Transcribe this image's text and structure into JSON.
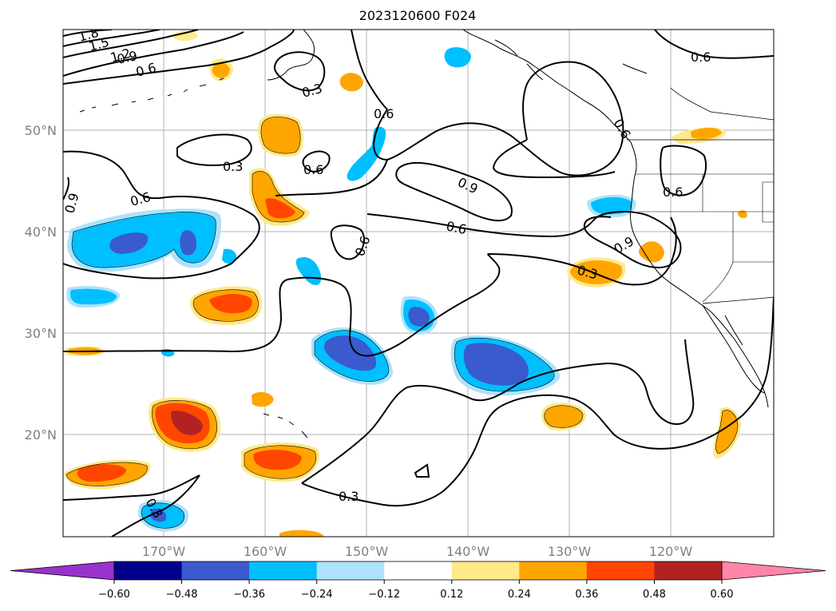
{
  "title": "2023120600 F024",
  "map": {
    "lat_labels": [
      "50°N",
      "40°N",
      "30°N",
      "20°N"
    ],
    "lon_labels": [
      "170°W",
      "160°W",
      "150°W",
      "140°W",
      "130°W",
      "120°W"
    ],
    "contour_labels": [
      "1.8",
      "1.5",
      "1.2",
      "0.9",
      "0.6",
      "0.3",
      "0.6",
      "0.6",
      "0.6",
      "0.3",
      "0.9",
      "0.6",
      "0.9",
      "0.6",
      "0.6",
      "0.6",
      "0.3",
      "0.9",
      "0.6",
      "0.3",
      "0.3",
      "0.6"
    ]
  },
  "colorbar": {
    "ticks": [
      "−0.60",
      "−0.48",
      "−0.36",
      "−0.24",
      "−0.12",
      "0.12",
      "0.24",
      "0.36",
      "0.48",
      "0.60"
    ],
    "colors": {
      "under": "#9932cc",
      "bins": [
        "#00008b",
        "#3a5bcd",
        "#00bfff",
        "#ade2fb",
        "#ffffff",
        "#ffe98a",
        "#ffa500",
        "#ff4500",
        "#b22222"
      ],
      "over": "#ff86a8"
    }
  }
}
